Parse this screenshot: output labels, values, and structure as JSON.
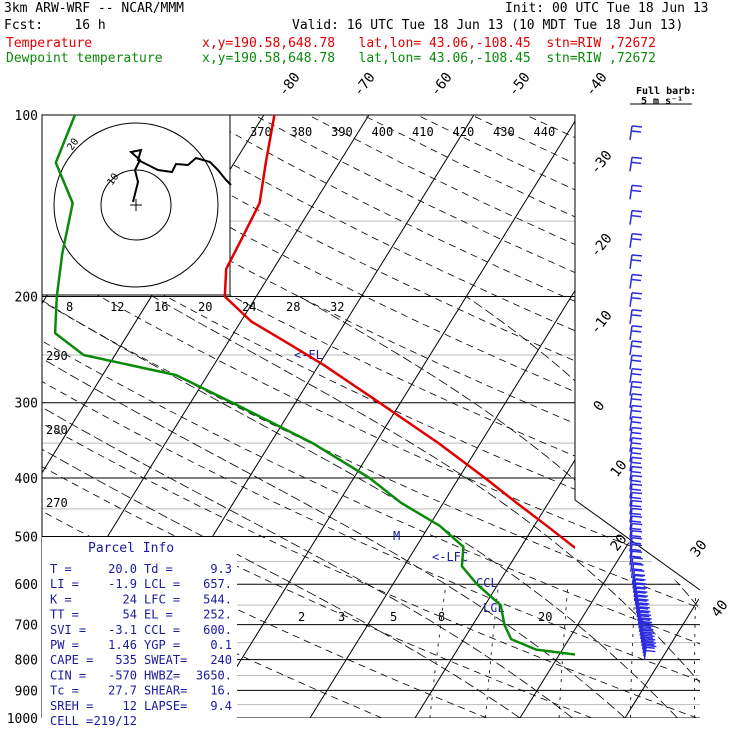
{
  "header": {
    "line1_left": "3km ARW-WRF -- NCAR/MMM",
    "line1_right": "Init: 00 UTC Tue 18 Jun 13",
    "line2_left": "Fcst:    16 h",
    "line2_right": "Valid: 16 UTC Tue 18 Jun 13 (10 MDT Tue 18 Jun 13)",
    "temp_label": "Temperature",
    "temp_info": "x,y=190.58,648.78   lat,lon= 43.06,-108.45  stn=RIW ,72672",
    "dew_label": "Dewpoint temperature",
    "dew_info": "x,y=190.58,648.78   lat,lon= 43.06,-108.45  stn=RIW ,72672"
  },
  "colors": {
    "temperature": "#e00000",
    "dewpoint": "#0a8a0a",
    "parcel": "#1a1aa0",
    "grid": "#000000",
    "barb": "#2a2ae0"
  },
  "chart_data": {
    "type": "line",
    "title": "Skew-T log-P sounding",
    "ylabel": "",
    "pressure_ticks": [
      100,
      200,
      300,
      400,
      500,
      600,
      700,
      800,
      900,
      1000
    ],
    "pressure_tick_labels": [
      "100",
      "200",
      "300",
      "400",
      "500",
      "600",
      "700",
      "800",
      "900",
      "1000"
    ],
    "isotherm_labels": [
      "-80",
      "-70",
      "-60",
      "-50",
      "-40",
      "-30",
      "-20",
      "-10",
      "0",
      "10",
      "20",
      "30",
      "40"
    ],
    "theta_e_labels": [
      "370",
      "380",
      "390",
      "400",
      "410",
      "420",
      "430",
      "440"
    ],
    "theta_labels": [
      "290",
      "280",
      "270"
    ],
    "hodograph_ticks": [
      "8",
      "12",
      "16",
      "20",
      "24",
      "28",
      "32"
    ],
    "hodograph_unit": "kts",
    "mixing_ratio_labels": [
      "2",
      "3",
      "5",
      "8",
      "20"
    ],
    "wind_legend": "Full barb:\n5 m s⁻¹",
    "levels": {
      "LCL": {
        "label": "LCL",
        "pressure": 657
      },
      "CCL": {
        "label": "CCL",
        "pressure": 600
      },
      "LFC": {
        "label": "<-LFC",
        "pressure": 544
      },
      "EL": {
        "label": "<-EL",
        "pressure": 252
      },
      "M": {
        "label": "M",
        "pressure": 515
      }
    },
    "series": [
      {
        "name": "Temperature",
        "points": [
          {
            "p": 800,
            "t": 20.0
          },
          {
            "p": 790,
            "t": 17.5
          },
          {
            "p": 760,
            "t": 15.2
          },
          {
            "p": 700,
            "t": 11.8
          },
          {
            "p": 650,
            "t": 7.5
          },
          {
            "p": 600,
            "t": 3.2
          },
          {
            "p": 560,
            "t": -1.0
          },
          {
            "p": 520,
            "t": -5.0
          },
          {
            "p": 480,
            "t": -8.8
          },
          {
            "p": 440,
            "t": -13.0
          },
          {
            "p": 400,
            "t": -17.5
          },
          {
            "p": 350,
            "t": -24.0
          },
          {
            "p": 300,
            "t": -32.0
          },
          {
            "p": 260,
            "t": -39.5
          },
          {
            "p": 240,
            "t": -44.0
          },
          {
            "p": 220,
            "t": -49.0
          },
          {
            "p": 200,
            "t": -53.0
          },
          {
            "p": 180,
            "t": -54.5
          },
          {
            "p": 160,
            "t": -54.8
          },
          {
            "p": 140,
            "t": -55.2
          },
          {
            "p": 120,
            "t": -57.0
          },
          {
            "p": 100,
            "t": -59.0
          }
        ]
      },
      {
        "name": "Dewpoint temperature",
        "points": [
          {
            "p": 800,
            "t": 9.3
          },
          {
            "p": 790,
            "t": 3.0
          },
          {
            "p": 770,
            "t": -2.5
          },
          {
            "p": 740,
            "t": -5.5
          },
          {
            "p": 700,
            "t": -7.0
          },
          {
            "p": 650,
            "t": -8.5
          },
          {
            "p": 600,
            "t": -12.0
          },
          {
            "p": 560,
            "t": -14.5
          },
          {
            "p": 520,
            "t": -15.5
          },
          {
            "p": 480,
            "t": -19.0
          },
          {
            "p": 440,
            "t": -24.0
          },
          {
            "p": 400,
            "t": -28.5
          },
          {
            "p": 350,
            "t": -36.0
          },
          {
            "p": 300,
            "t": -46.0
          },
          {
            "p": 270,
            "t": -53.0
          },
          {
            "p": 250,
            "t": -63.0
          },
          {
            "p": 230,
            "t": -67.0
          },
          {
            "p": 200,
            "t": -69.0
          },
          {
            "p": 170,
            "t": -71.0
          },
          {
            "p": 140,
            "t": -73.0
          },
          {
            "p": 120,
            "t": -77.0
          },
          {
            "p": 100,
            "t": -78.0
          }
        ]
      }
    ],
    "parcel_info": {
      "title": "Parcel Info",
      "rows": [
        [
          "T   =",
          "20.0",
          "Td  =",
          "9.3"
        ],
        [
          "LI  =",
          "-1.9",
          "LCL =",
          "657."
        ],
        [
          "K   =",
          "24",
          "LFC =",
          "544."
        ],
        [
          "TT  =",
          "54",
          "EL  =",
          "252."
        ],
        [
          "SVI =",
          "-3.1",
          "CCL =",
          "600."
        ],
        [
          "PW  =",
          "1.46",
          "YGP =",
          "0.1"
        ],
        [
          "CAPE =",
          "535",
          "SWEAT=",
          "240"
        ],
        [
          "CIN  =",
          "-570",
          "HWBZ=",
          "3650."
        ],
        [
          "Tc  =",
          "27.7",
          "SHEAR=",
          "16."
        ],
        [
          "SREH =",
          "12",
          "LAPSE=",
          "9.4"
        ],
        [
          "CELL =",
          "219/12",
          "",
          ""
        ]
      ]
    }
  }
}
